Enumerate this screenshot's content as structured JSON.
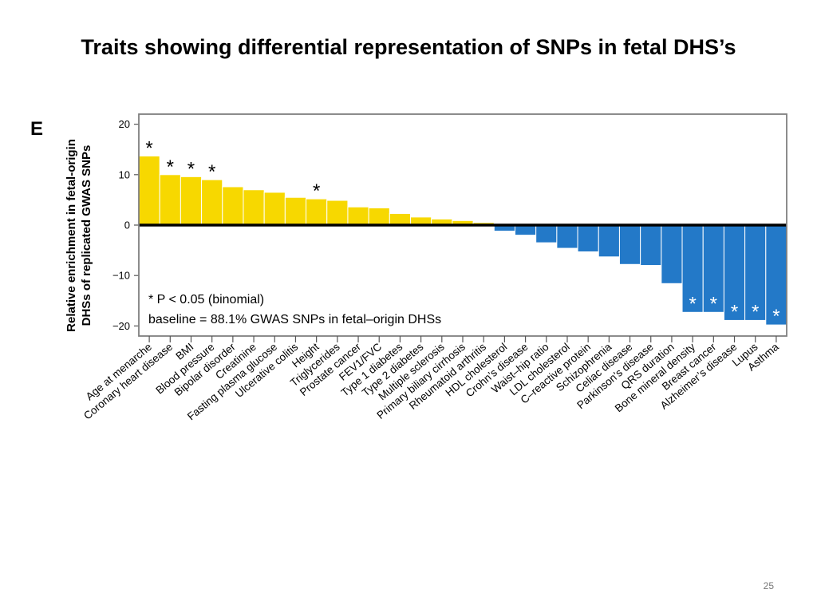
{
  "slide": {
    "title": "Traits showing differential representation of SNPs in fetal DHS’s",
    "page_number": "25"
  },
  "colors": {
    "positive": "#F7D800",
    "negative": "#2379C8",
    "axis": "#000000",
    "frame": "#808080"
  },
  "chart_data": {
    "type": "bar",
    "panel_label": "E",
    "ylabel": "Relative enrichment in fetal-origin DHSs of replicated GWAS SNPs",
    "ylim": [
      -22,
      22
    ],
    "yticks": [
      20,
      10,
      0,
      -10,
      -20
    ],
    "categories": [
      "Age at menarche",
      "Coronary heart disease",
      "BMI",
      "Blood pressure",
      "Bipolar disorder",
      "Creatinine",
      "Fasting plasma glucose",
      "Ulcerative colitis",
      "Height",
      "Triglycerides",
      "Prostate cancer",
      "FEV1/FVC",
      "Type 1 diabetes",
      "Type 2 diabetes",
      "Multiple sclerosis",
      "Primary biliary cirrhosis",
      "Rheumatoid arthritis",
      "HDL cholesterol",
      "Crohn’s disease",
      "Waist–hip ratio",
      "LDL cholesterol",
      "C–reactive protein",
      "Schizophrenia",
      "Celiac disease",
      "Parkinson’s disease",
      "QRS duration",
      "Bone mineral density",
      "Breast cancer",
      "Alzheimer’s disease",
      "Lupus",
      "Asthma"
    ],
    "values": [
      13.7,
      10.0,
      9.6,
      9.0,
      7.6,
      7.0,
      6.5,
      5.5,
      5.2,
      4.9,
      3.6,
      3.4,
      2.3,
      1.6,
      1.2,
      0.9,
      0.5,
      -1.2,
      -2.0,
      -3.5,
      -4.6,
      -5.3,
      -6.3,
      -7.8,
      -8.0,
      -11.6,
      -17.3,
      -17.3,
      -18.9,
      -18.9,
      -19.8
    ],
    "significant": [
      true,
      true,
      true,
      true,
      false,
      false,
      false,
      false,
      true,
      false,
      false,
      false,
      false,
      false,
      false,
      false,
      false,
      false,
      false,
      false,
      false,
      false,
      false,
      false,
      false,
      false,
      true,
      true,
      true,
      true,
      true
    ],
    "annotation_lines": [
      "* P < 0.05 (binomial)",
      "baseline = 88.1% GWAS SNPs in fetal–origin DHSs"
    ],
    "significance_symbol": "*",
    "grid": false
  }
}
